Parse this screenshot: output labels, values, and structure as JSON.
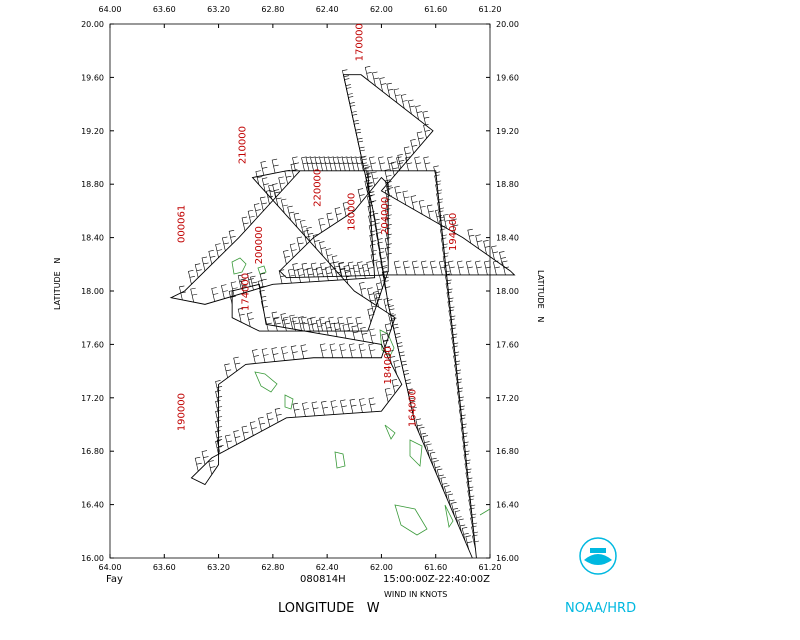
{
  "header": {
    "storm": "Fay",
    "date": "080814H",
    "time_range": "15:00:00Z-22:40:00Z",
    "wind_units": "WIND IN KNOTS",
    "credit": "NOAA/HRD"
  },
  "chart_data": {
    "type": "track",
    "xlabel": "LONGITUDE   W",
    "ylabel": "LATITUDE   N",
    "xlim": [
      64,
      61.2
    ],
    "ylim": [
      16,
      20
    ],
    "xticks": [
      {
        "value": 64,
        "label": "64.00"
      },
      {
        "value": 63.6,
        "label": "63.60"
      },
      {
        "value": 63.2,
        "label": "63.20"
      },
      {
        "value": 62.8,
        "label": "62.80"
      },
      {
        "value": 62.4,
        "label": "62.40"
      },
      {
        "value": 62,
        "label": "62.00"
      },
      {
        "value": 61.6,
        "label": "61.60"
      },
      {
        "value": 61.2,
        "label": "61.20"
      }
    ],
    "yticks": [
      {
        "value": 16,
        "label": "16.00"
      },
      {
        "value": 16.4,
        "label": "16.40"
      },
      {
        "value": 16.8,
        "label": "16.80"
      },
      {
        "value": 17.2,
        "label": "17.20"
      },
      {
        "value": 17.6,
        "label": "17.60"
      },
      {
        "value": 18,
        "label": "18.00"
      },
      {
        "value": 18.4,
        "label": "18.40"
      },
      {
        "value": 18.8,
        "label": "18.80"
      },
      {
        "value": 19.2,
        "label": "19.20"
      },
      {
        "value": 19.6,
        "label": "19.60"
      },
      {
        "value": 20,
        "label": "20.00"
      }
    ],
    "track": {
      "lon": [
        61.33,
        61.75,
        61.95,
        62.05,
        62.28,
        62.15,
        61.62,
        62.0,
        61.4,
        61.05,
        61.02,
        61.95,
        62.7,
        62.75,
        62.5,
        62.2,
        62.0,
        61.95,
        61.95,
        62.1,
        62.9,
        63.1,
        63.1,
        62.9,
        62.85,
        62.0,
        61.85,
        62.0,
        62.7,
        63.25,
        63.4,
        63.3,
        63.2,
        63.2,
        63.0,
        62.5,
        62.0,
        61.9,
        62.2,
        62.95,
        62.7,
        62.1,
        62.05,
        62.8,
        63.3,
        63.55,
        63.45,
        63.05,
        62.6,
        61.6,
        61.3
      ],
      "lat": [
        16.0,
        17.0,
        17.9,
        18.55,
        19.62,
        19.62,
        19.2,
        18.75,
        18.4,
        18.15,
        18.12,
        18.12,
        18.1,
        18.15,
        18.4,
        18.6,
        18.85,
        18.8,
        18.15,
        17.7,
        17.7,
        17.8,
        18.0,
        18.05,
        17.75,
        17.6,
        17.3,
        17.1,
        17.05,
        16.75,
        16.6,
        16.55,
        16.7,
        17.3,
        17.45,
        17.5,
        17.5,
        17.8,
        18.0,
        18.85,
        18.9,
        18.9,
        18.1,
        18.05,
        17.9,
        17.95,
        18.0,
        18.4,
        18.9,
        18.9,
        16.0
      ]
    },
    "time_labels": [
      {
        "text": "170000",
        "lon": 62.14,
        "lat": 19.72
      },
      {
        "text": "210000",
        "lon": 63.0,
        "lat": 18.95
      },
      {
        "text": "220000",
        "lon": 62.45,
        "lat": 18.63
      },
      {
        "text": "180000",
        "lon": 62.2,
        "lat": 18.45
      },
      {
        "text": "204000",
        "lon": 61.95,
        "lat": 18.42
      },
      {
        "text": "194000",
        "lon": 61.45,
        "lat": 18.3
      },
      {
        "text": "200000",
        "lon": 62.88,
        "lat": 18.2
      },
      {
        "text": "174000",
        "lon": 62.98,
        "lat": 17.85
      },
      {
        "text": "000061",
        "lon": 63.45,
        "lat": 18.36
      },
      {
        "text": "190000",
        "lon": 63.45,
        "lat": 16.95
      },
      {
        "text": "184000",
        "lon": 61.93,
        "lat": 17.3
      },
      {
        "text": "164000",
        "lon": 61.75,
        "lat": 16.98
      }
    ]
  }
}
